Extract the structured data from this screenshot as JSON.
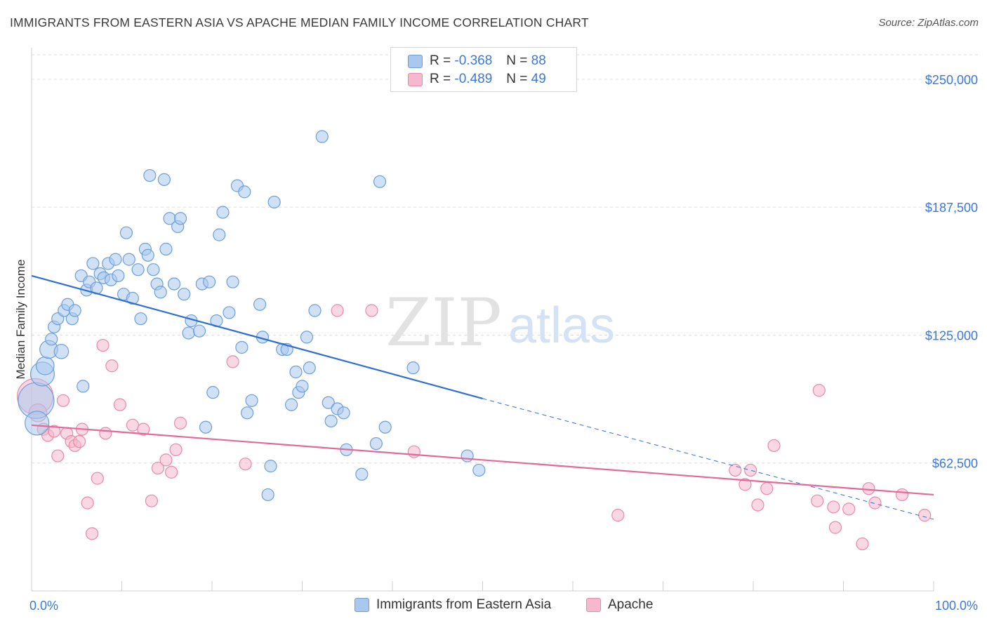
{
  "title": "IMMIGRANTS FROM EASTERN ASIA VS APACHE MEDIAN FAMILY INCOME CORRELATION CHART",
  "source": "Source: ZipAtlas.com",
  "watermark": {
    "zip": "ZIP",
    "atlas": "atlas"
  },
  "legend_top": {
    "rows": [
      {
        "r_label": "R =",
        "r_value": "-0.368",
        "n_label": "N =",
        "n_value": "88"
      },
      {
        "r_label": "R =",
        "r_value": "-0.489",
        "n_label": "N =",
        "n_value": "49"
      }
    ]
  },
  "legend_bottom": [
    {
      "label": "Immigrants from Eastern Asia"
    },
    {
      "label": "Apache"
    }
  ],
  "colors": {
    "blue_fill": "#aac8ee",
    "blue_stroke": "#6d9fd8",
    "blue_line": "#2f6fd0",
    "pink_fill": "#f6b8cc",
    "pink_stroke": "#e88aa8",
    "pink_line": "#e26a98",
    "tick_label": "#3c78d8",
    "grid": "#dddddd"
  },
  "chart_data": {
    "type": "scatter",
    "title": "IMMIGRANTS FROM EASTERN ASIA VS APACHE MEDIAN FAMILY INCOME CORRELATION CHART",
    "xlabel": "",
    "ylabel": "Median Family Income",
    "xlim": [
      0,
      100
    ],
    "ylim": [
      0,
      262000
    ],
    "x_tick_labels": [
      "0.0%",
      "100.0%"
    ],
    "y_ticks": [
      62500,
      125000,
      187500,
      250000
    ],
    "y_tick_labels": [
      "$62,500",
      "$125,000",
      "$187,500",
      "$250,000"
    ],
    "grid": true,
    "legend_position": "top-center",
    "series": [
      {
        "name": "Immigrants from Eastern Asia",
        "trend": {
          "x0": 0,
          "y0": 154000,
          "x1": 50,
          "y1": 94000,
          "x_dash_end": 100,
          "y_dash_end": 35000
        },
        "points": [
          [
            0.5,
            93000,
            3
          ],
          [
            0.6,
            82000,
            2
          ],
          [
            1.2,
            106000,
            2
          ],
          [
            1.5,
            110000,
            1.5
          ],
          [
            1.9,
            118000,
            1.5
          ],
          [
            2.2,
            123000,
            1
          ],
          [
            2.5,
            129000,
            1
          ],
          [
            2.9,
            133000,
            1
          ],
          [
            3.3,
            117000,
            1.2
          ],
          [
            3.6,
            137000,
            1
          ],
          [
            4.0,
            140000,
            1
          ],
          [
            4.5,
            133000,
            1
          ],
          [
            4.8,
            137000,
            1
          ],
          [
            5.5,
            154000,
            1
          ],
          [
            5.7,
            100000,
            1
          ],
          [
            6.1,
            147000,
            1
          ],
          [
            6.4,
            151000,
            1
          ],
          [
            6.8,
            160000,
            1
          ],
          [
            7.2,
            148000,
            1
          ],
          [
            7.6,
            155000,
            1
          ],
          [
            8.0,
            153000,
            1
          ],
          [
            8.5,
            160000,
            1
          ],
          [
            8.8,
            152000,
            1
          ],
          [
            9.3,
            162000,
            1
          ],
          [
            9.6,
            154000,
            1
          ],
          [
            10.2,
            145000,
            1
          ],
          [
            10.5,
            175000,
            1
          ],
          [
            10.8,
            162000,
            1
          ],
          [
            11.2,
            143000,
            1
          ],
          [
            11.8,
            157000,
            1
          ],
          [
            12.1,
            133000,
            1
          ],
          [
            12.6,
            167000,
            1
          ],
          [
            12.9,
            164000,
            1
          ],
          [
            13.1,
            203000,
            1
          ],
          [
            13.5,
            157000,
            1
          ],
          [
            13.9,
            150000,
            1
          ],
          [
            14.3,
            146000,
            1
          ],
          [
            14.7,
            201000,
            1
          ],
          [
            14.9,
            167000,
            1
          ],
          [
            15.3,
            182000,
            1
          ],
          [
            15.8,
            150000,
            1
          ],
          [
            16.2,
            178000,
            1
          ],
          [
            16.5,
            182000,
            1
          ],
          [
            16.9,
            145000,
            1
          ],
          [
            17.4,
            126000,
            1
          ],
          [
            17.7,
            132000,
            1
          ],
          [
            18.6,
            127000,
            1
          ],
          [
            18.9,
            150000,
            1
          ],
          [
            19.3,
            80000,
            1
          ],
          [
            19.7,
            151000,
            1
          ],
          [
            20.1,
            97000,
            1
          ],
          [
            20.5,
            132000,
            1
          ],
          [
            20.8,
            174000,
            1
          ],
          [
            21.2,
            185000,
            1
          ],
          [
            21.9,
            136000,
            1
          ],
          [
            22.3,
            151000,
            1
          ],
          [
            22.8,
            198000,
            1
          ],
          [
            23.3,
            119000,
            1
          ],
          [
            23.6,
            195000,
            1
          ],
          [
            23.9,
            87000,
            1
          ],
          [
            24.4,
            93000,
            1
          ],
          [
            25.3,
            140000,
            1
          ],
          [
            25.6,
            124000,
            1
          ],
          [
            26.2,
            47000,
            1
          ],
          [
            26.5,
            61000,
            1
          ],
          [
            26.9,
            190000,
            1
          ],
          [
            27.8,
            118000,
            1
          ],
          [
            28.3,
            118000,
            1
          ],
          [
            28.8,
            91000,
            1
          ],
          [
            29.3,
            107000,
            1
          ],
          [
            29.6,
            97000,
            1
          ],
          [
            30.0,
            100000,
            1
          ],
          [
            30.5,
            124000,
            1
          ],
          [
            30.8,
            109000,
            1
          ],
          [
            31.4,
            137000,
            1
          ],
          [
            32.2,
            222000,
            1
          ],
          [
            32.9,
            92000,
            1
          ],
          [
            33.2,
            83000,
            1
          ],
          [
            33.9,
            89000,
            1
          ],
          [
            34.6,
            87000,
            1
          ],
          [
            34.9,
            69000,
            1
          ],
          [
            36.6,
            57000,
            1
          ],
          [
            38.2,
            72000,
            1
          ],
          [
            38.6,
            200000,
            1
          ],
          [
            39.2,
            80000,
            1
          ],
          [
            42.3,
            109000,
            1
          ],
          [
            48.3,
            66000,
            1
          ],
          [
            49.6,
            59000,
            1
          ]
        ]
      },
      {
        "name": "Apache",
        "trend": {
          "x0": 0,
          "y0": 81000,
          "x1": 100,
          "y1": 47000
        },
        "points": [
          [
            0.4,
            95000,
            3
          ],
          [
            0.7,
            87000,
            1.5
          ],
          [
            1.3,
            79000,
            1
          ],
          [
            1.8,
            76000,
            1
          ],
          [
            2.5,
            78000,
            1
          ],
          [
            2.9,
            66000,
            1
          ],
          [
            3.5,
            93000,
            1
          ],
          [
            3.9,
            77000,
            1
          ],
          [
            4.4,
            73000,
            1
          ],
          [
            4.8,
            71000,
            1
          ],
          [
            5.3,
            73000,
            1
          ],
          [
            5.6,
            79000,
            1
          ],
          [
            6.2,
            43000,
            1
          ],
          [
            6.7,
            28000,
            1
          ],
          [
            7.3,
            55000,
            1
          ],
          [
            7.9,
            120000,
            1
          ],
          [
            8.2,
            77000,
            1
          ],
          [
            8.9,
            110000,
            1
          ],
          [
            9.8,
            91000,
            1
          ],
          [
            11.2,
            81000,
            1
          ],
          [
            12.4,
            79000,
            1
          ],
          [
            13.3,
            44000,
            1
          ],
          [
            14.0,
            60000,
            1
          ],
          [
            14.9,
            64000,
            1
          ],
          [
            15.5,
            58000,
            1
          ],
          [
            16.0,
            69000,
            1
          ],
          [
            16.5,
            82000,
            1
          ],
          [
            22.3,
            112000,
            1
          ],
          [
            23.7,
            62000,
            1
          ],
          [
            33.9,
            137000,
            1
          ],
          [
            37.7,
            137000,
            1
          ],
          [
            42.4,
            68000,
            1
          ],
          [
            65.0,
            37000,
            1
          ],
          [
            78.0,
            59000,
            1
          ],
          [
            79.1,
            52000,
            1
          ],
          [
            79.7,
            59000,
            1
          ],
          [
            80.5,
            42000,
            1
          ],
          [
            81.5,
            50000,
            1
          ],
          [
            82.3,
            71000,
            1
          ],
          [
            87.1,
            44000,
            1
          ],
          [
            87.3,
            98000,
            1
          ],
          [
            88.9,
            41000,
            1
          ],
          [
            89.1,
            31000,
            1
          ],
          [
            90.6,
            40000,
            1
          ],
          [
            92.1,
            23000,
            1
          ],
          [
            92.8,
            50000,
            1
          ],
          [
            93.5,
            43000,
            1
          ],
          [
            96.5,
            47000,
            1
          ],
          [
            99.0,
            37000,
            1
          ]
        ]
      }
    ]
  }
}
